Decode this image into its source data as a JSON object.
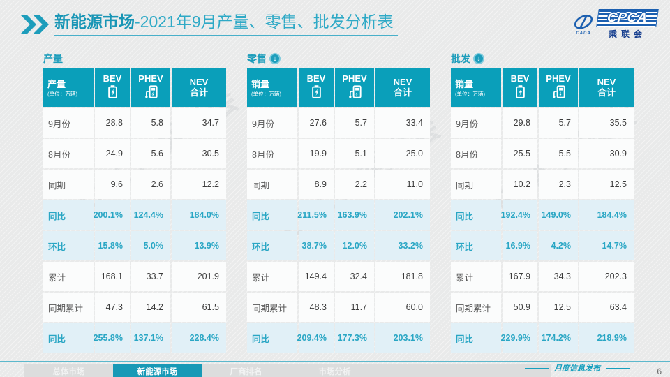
{
  "header": {
    "title_bold": "新能源市场",
    "title_rest": "-2021年9月产量、零售、批发分析表",
    "logo": {
      "cpca": "CPCA",
      "swirl_sub": "CADA",
      "org": "乘联会"
    }
  },
  "watermark": {
    "text": "CPCA 乘联会"
  },
  "colors": {
    "teal": "#0a9fba",
    "teal_text": "#29a6c4",
    "highlight_row": "#e1f0f7",
    "active_tab": "#1899b6",
    "blue_logo": "#1b5fb0"
  },
  "tables": [
    {
      "section_title": "产量",
      "has_arrow": false,
      "header": {
        "label": "产量",
        "unit": "(单位：万辆)",
        "col_bev": "BEV",
        "col_phev": "PHEV",
        "col_nev1": "NEV",
        "col_nev2": "合计"
      },
      "rows": [
        {
          "label": "9月份",
          "values": [
            "28.8",
            "5.8",
            "34.7"
          ],
          "highlight": false
        },
        {
          "label": "8月份",
          "values": [
            "24.9",
            "5.6",
            "30.5"
          ],
          "highlight": false
        },
        {
          "label": "同期",
          "values": [
            "9.6",
            "2.6",
            "12.2"
          ],
          "highlight": false
        },
        {
          "label": "同比",
          "values": [
            "200.1%",
            "124.4%",
            "184.0%"
          ],
          "highlight": true
        },
        {
          "label": "环比",
          "values": [
            "15.8%",
            "5.0%",
            "13.9%"
          ],
          "highlight": true
        },
        {
          "label": "累计",
          "values": [
            "168.1",
            "33.7",
            "201.9"
          ],
          "highlight": false
        },
        {
          "label": "同期累计",
          "values": [
            "47.3",
            "14.2",
            "61.5"
          ],
          "highlight": false
        },
        {
          "label": "同比",
          "values": [
            "255.8%",
            "137.1%",
            "228.4%"
          ],
          "highlight": true
        }
      ]
    },
    {
      "section_title": "零售",
      "has_arrow": true,
      "arrow": "↓",
      "header": {
        "label": "销量",
        "unit": "(单位：万辆)",
        "col_bev": "BEV",
        "col_phev": "PHEV",
        "col_nev1": "NEV",
        "col_nev2": "合计"
      },
      "rows": [
        {
          "label": "9月份",
          "values": [
            "27.6",
            "5.7",
            "33.4"
          ],
          "highlight": false
        },
        {
          "label": "8月份",
          "values": [
            "19.9",
            "5.1",
            "25.0"
          ],
          "highlight": false
        },
        {
          "label": "同期",
          "values": [
            "8.9",
            "2.2",
            "11.0"
          ],
          "highlight": false
        },
        {
          "label": "同比",
          "values": [
            "211.5%",
            "163.9%",
            "202.1%"
          ],
          "highlight": true
        },
        {
          "label": "环比",
          "values": [
            "38.7%",
            "12.0%",
            "33.2%"
          ],
          "highlight": true
        },
        {
          "label": "累计",
          "values": [
            "149.4",
            "32.4",
            "181.8"
          ],
          "highlight": false
        },
        {
          "label": "同期累计",
          "values": [
            "48.3",
            "11.7",
            "60.0"
          ],
          "highlight": false
        },
        {
          "label": "同比",
          "values": [
            "209.4%",
            "177.3%",
            "203.1%"
          ],
          "highlight": true
        }
      ]
    },
    {
      "section_title": "批发",
      "has_arrow": true,
      "arrow": "↓",
      "header": {
        "label": "销量",
        "unit": "(单位：万辆)",
        "col_bev": "BEV",
        "col_phev": "PHEV",
        "col_nev1": "NEV",
        "col_nev2": "合计"
      },
      "rows": [
        {
          "label": "9月份",
          "values": [
            "29.8",
            "5.7",
            "35.5"
          ],
          "highlight": false
        },
        {
          "label": "8月份",
          "values": [
            "25.5",
            "5.5",
            "30.9"
          ],
          "highlight": false
        },
        {
          "label": "同期",
          "values": [
            "10.2",
            "2.3",
            "12.5"
          ],
          "highlight": false
        },
        {
          "label": "同比",
          "values": [
            "192.4%",
            "149.0%",
            "184.4%"
          ],
          "highlight": true
        },
        {
          "label": "环比",
          "values": [
            "16.9%",
            "4.2%",
            "14.7%"
          ],
          "highlight": true
        },
        {
          "label": "累计",
          "values": [
            "167.9",
            "34.3",
            "202.3"
          ],
          "highlight": false
        },
        {
          "label": "同期累计",
          "values": [
            "50.9",
            "12.5",
            "63.4"
          ],
          "highlight": false
        },
        {
          "label": "同比",
          "values": [
            "229.9%",
            "174.2%",
            "218.9%"
          ],
          "highlight": true
        }
      ]
    }
  ],
  "footer": {
    "tabs": [
      {
        "label": "总体市场",
        "active": false
      },
      {
        "label": "新能源市场",
        "active": true
      },
      {
        "label": "厂商排名",
        "active": false
      },
      {
        "label": "市场分析",
        "active": false
      }
    ],
    "caption": "月度信息发布",
    "page_number": "6"
  }
}
